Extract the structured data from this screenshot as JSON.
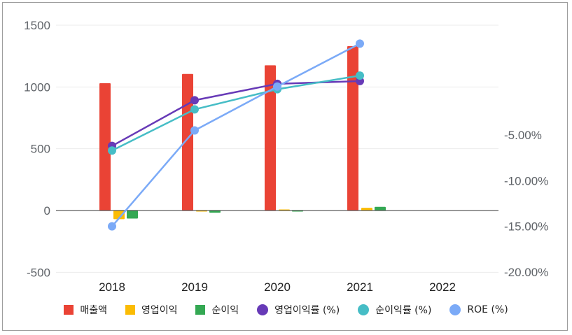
{
  "chart_data": {
    "type": "bar",
    "categories": [
      "2018",
      "2019",
      "2020",
      "2021",
      "2022"
    ],
    "y_left": {
      "ticks": [
        "1500",
        "1000",
        "500",
        "0",
        "-500"
      ],
      "ylim": [
        -500,
        1500
      ]
    },
    "y_right": {
      "ticks": [
        "-5.00%",
        "-10.00%",
        "-15.00%",
        "-20.00%"
      ],
      "ylim": [
        -20,
        5
      ]
    },
    "bar_series": [
      {
        "name": "매출액",
        "color": "#ea4335",
        "values": [
          1030,
          1105,
          1175,
          1330,
          null
        ]
      },
      {
        "name": "영업이익",
        "color": "#fbbc04",
        "values": [
          -70,
          -8,
          5,
          22,
          null
        ]
      },
      {
        "name": "순이익",
        "color": "#34a853",
        "values": [
          -65,
          -18,
          -4,
          30,
          null
        ]
      }
    ],
    "line_series": [
      {
        "name": "영업이익률 (%)",
        "color": "#673ab7",
        "values": [
          -6.2,
          -1.2,
          0.6,
          0.9,
          null
        ]
      },
      {
        "name": "순이익률 (%)",
        "color": "#46bdc6",
        "values": [
          -6.7,
          -2.2,
          0.0,
          1.5,
          null
        ]
      },
      {
        "name": "ROE (%)",
        "color": "#7baaf7",
        "values": [
          -15.0,
          -4.5,
          0.3,
          5.0,
          null
        ]
      }
    ],
    "grid": true,
    "legend_position": "bottom"
  }
}
